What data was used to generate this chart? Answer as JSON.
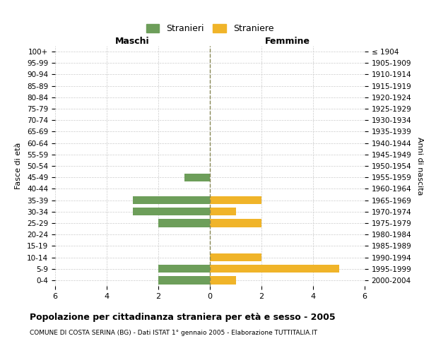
{
  "age_groups": [
    "100+",
    "95-99",
    "90-94",
    "85-89",
    "80-84",
    "75-79",
    "70-74",
    "65-69",
    "60-64",
    "55-59",
    "50-54",
    "45-49",
    "40-44",
    "35-39",
    "30-34",
    "25-29",
    "20-24",
    "15-19",
    "10-14",
    "5-9",
    "0-4"
  ],
  "birth_years": [
    "≤ 1904",
    "1905-1909",
    "1910-1914",
    "1915-1919",
    "1920-1924",
    "1925-1929",
    "1930-1934",
    "1935-1939",
    "1940-1944",
    "1945-1949",
    "1950-1954",
    "1955-1959",
    "1960-1964",
    "1965-1969",
    "1970-1974",
    "1975-1979",
    "1980-1984",
    "1985-1989",
    "1990-1994",
    "1995-1999",
    "2000-2004"
  ],
  "males": [
    0,
    0,
    0,
    0,
    0,
    0,
    0,
    0,
    0,
    0,
    0,
    1,
    0,
    3,
    3,
    2,
    0,
    0,
    0,
    2,
    2
  ],
  "females": [
    0,
    0,
    0,
    0,
    0,
    0,
    0,
    0,
    0,
    0,
    0,
    0,
    0,
    2,
    1,
    2,
    0,
    0,
    2,
    5,
    1
  ],
  "male_color": "#6d9e5a",
  "female_color": "#f0b429",
  "background_color": "#ffffff",
  "grid_color": "#cccccc",
  "title": "Popolazione per cittadinanza straniera per età e sesso - 2005",
  "subtitle": "COMUNE DI COSTA SERINA (BG) - Dati ISTAT 1° gennaio 2005 - Elaborazione TUTTITALIA.IT",
  "xlabel_left": "Maschi",
  "xlabel_right": "Femmine",
  "ylabel_left": "Fasce di età",
  "ylabel_right": "Anni di nascita",
  "legend_male": "Stranieri",
  "legend_female": "Straniere",
  "xlim": 6,
  "center_line_color": "#888855"
}
